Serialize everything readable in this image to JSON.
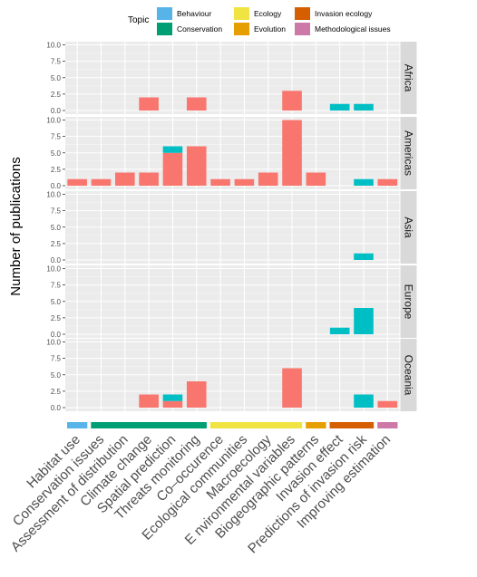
{
  "chart_data": {
    "type": "bar",
    "stacked": true,
    "ylabel": "Number of publications",
    "ylim": [
      0,
      10
    ],
    "yticks": [
      "0.0",
      "2.5",
      "5.0",
      "7.5",
      "10.0"
    ],
    "grid": true,
    "legend": {
      "title": "Topic",
      "placement": "top",
      "entries": [
        {
          "name": "Behaviour",
          "color": "#56b4e9"
        },
        {
          "name": "Conservation",
          "color": "#009e73"
        },
        {
          "name": "Ecology",
          "color": "#f0e442"
        },
        {
          "name": "Evolution",
          "color": "#e69f00"
        },
        {
          "name": "Invasion ecology",
          "color": "#d55e00"
        },
        {
          "name": "Methodological issues",
          "color": "#cc79a7"
        }
      ]
    },
    "categories": [
      "Habitat use",
      "Conservation issues",
      "Assessment of distribution",
      "Climate change",
      "Spatial prediction",
      "Threats monitoring",
      "Co–occurence",
      "Ecological communities",
      "Macroecology",
      "E nvironmental variables",
      "Biogeographic patterns",
      "Invasion effect",
      "Predictions of invasion risk",
      "Improving estimation"
    ],
    "category_topics": [
      "Behaviour",
      "Conservation",
      "Conservation",
      "Conservation",
      "Conservation",
      "Conservation",
      "Ecology",
      "Ecology",
      "Ecology",
      "Ecology",
      "Evolution",
      "Invasion ecology",
      "Invasion ecology",
      "Methodological issues"
    ],
    "stack_series_colors": {
      "series_a": "#f8766d",
      "series_b": "#00bfc4"
    },
    "panels": [
      {
        "name": "Africa",
        "series_a": [
          0,
          0,
          0,
          2,
          0,
          2,
          0,
          0,
          0,
          3,
          0,
          0,
          0,
          0
        ],
        "series_b": [
          0,
          0,
          0,
          0,
          0,
          0,
          0,
          0,
          0,
          0,
          0,
          1,
          1,
          0
        ]
      },
      {
        "name": "Americas",
        "series_a": [
          1,
          1,
          2,
          2,
          5,
          6,
          1,
          1,
          2,
          10,
          2,
          0,
          0,
          1
        ],
        "series_b": [
          0,
          0,
          0,
          0,
          1,
          0,
          0,
          0,
          0,
          0,
          0,
          0,
          1,
          0
        ]
      },
      {
        "name": "Asia",
        "series_a": [
          0,
          0,
          0,
          0,
          0,
          0,
          0,
          0,
          0,
          0,
          0,
          0,
          0,
          0
        ],
        "series_b": [
          0,
          0,
          0,
          0,
          0,
          0,
          0,
          0,
          0,
          0,
          0,
          0,
          1,
          0
        ]
      },
      {
        "name": "Europe",
        "series_a": [
          0,
          0,
          0,
          0,
          0,
          0,
          0,
          0,
          0,
          0,
          0,
          0,
          0,
          0
        ],
        "series_b": [
          0,
          0,
          0,
          0,
          0,
          0,
          0,
          0,
          0,
          0,
          0,
          1,
          4,
          0
        ]
      },
      {
        "name": "Oceania",
        "series_a": [
          0,
          0,
          0,
          2,
          1,
          4,
          0,
          0,
          0,
          6,
          0,
          0,
          0,
          1
        ],
        "series_b": [
          0,
          0,
          0,
          0,
          1,
          0,
          0,
          0,
          0,
          0,
          0,
          0,
          2,
          0
        ]
      }
    ]
  }
}
